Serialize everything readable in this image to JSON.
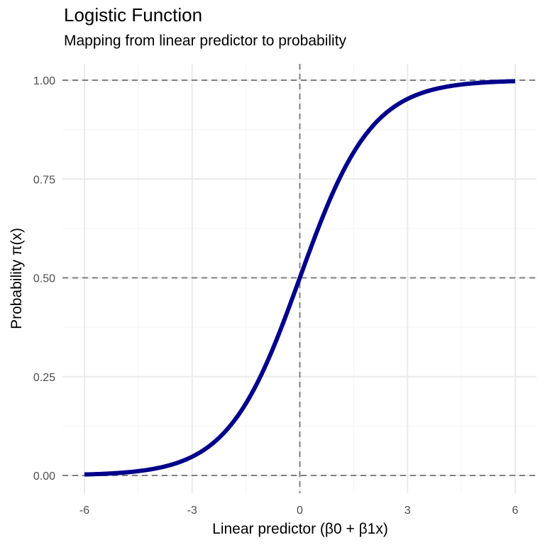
{
  "chart_data": {
    "type": "line",
    "title": "Logistic Function",
    "subtitle": "Mapping from linear predictor to probability",
    "xlabel": "Linear predictor (β0 + β1x)",
    "ylabel": "Probability π(x)",
    "xlim": [
      -6,
      6
    ],
    "ylim": [
      0,
      1
    ],
    "x_ticks": [
      -6,
      -3,
      0,
      3,
      6
    ],
    "x_tick_labels": [
      "-6",
      "-3",
      "0",
      "3",
      "6"
    ],
    "y_ticks": [
      0,
      0.25,
      0.5,
      0.75,
      1
    ],
    "y_tick_labels": [
      "0.00",
      "0.25",
      "0.50",
      "0.75",
      "1.00"
    ],
    "grid": true,
    "reference_lines": {
      "horizontal": [
        0,
        0.5,
        1
      ],
      "vertical": [
        0
      ],
      "style": "dashed"
    },
    "series": [
      {
        "function": "1 / (1 + exp(-x))",
        "color": "#00008b",
        "x": [
          -6,
          -5,
          -4,
          -3,
          -2,
          -1,
          0,
          1,
          2,
          3,
          4,
          5,
          6
        ],
        "y": [
          0.0025,
          0.0067,
          0.018,
          0.0474,
          0.1192,
          0.2689,
          0.5,
          0.7311,
          0.8808,
          0.9526,
          0.982,
          0.9933,
          0.9975
        ]
      }
    ]
  },
  "colors": {
    "curve": "#00008b",
    "reference_line": "#7f7f7f",
    "grid_major": "#ebebeb",
    "grid_minor": "#f5f5f5",
    "tick_label": "#4d4d4d",
    "text": "#000000"
  }
}
